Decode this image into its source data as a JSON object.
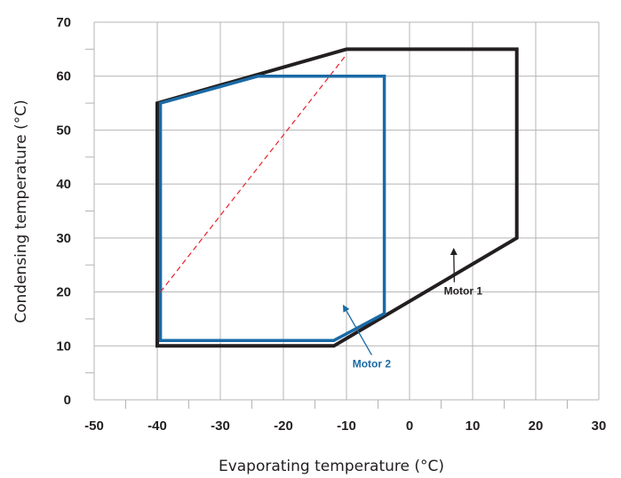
{
  "chart_data": {
    "type": "area",
    "xlabel": "Evaporating temperature (°C)",
    "ylabel": "Condensing temperature (°C)",
    "xlim": [
      -50,
      30
    ],
    "ylim": [
      0,
      70
    ],
    "x_ticks": [
      -50,
      -40,
      -30,
      -20,
      -10,
      0,
      10,
      20,
      30
    ],
    "y_ticks": [
      0,
      10,
      20,
      30,
      40,
      50,
      60,
      70
    ],
    "grid": true,
    "series": [
      {
        "name": "Motor 1",
        "color": "#231f20",
        "closed": true,
        "points": [
          [
            -40,
            10
          ],
          [
            -12,
            10
          ],
          [
            17,
            30
          ],
          [
            17,
            65
          ],
          [
            -10,
            65
          ],
          [
            -40,
            55
          ]
        ]
      },
      {
        "name": "Motor 2",
        "color": "#1a6aa6",
        "closed": true,
        "points": [
          [
            -39.5,
            11
          ],
          [
            -12,
            11
          ],
          [
            -4,
            16
          ],
          [
            -4,
            60
          ],
          [
            -24,
            60
          ],
          [
            -39.5,
            55
          ]
        ]
      },
      {
        "color": "#e8222a",
        "style": "dashed",
        "closed": false,
        "points": [
          [
            -39.5,
            20
          ],
          [
            -10,
            64
          ]
        ]
      }
    ],
    "annotations": [
      {
        "text": "Motor 1",
        "color": "#231f20",
        "x": 8.5,
        "y": 19.5,
        "arrow_to": [
          7,
          28
        ]
      },
      {
        "text": "Motor 2",
        "color": "#1a6aa6",
        "x": -6,
        "y": 6,
        "arrow_to": [
          -10.5,
          17.5
        ]
      }
    ]
  }
}
